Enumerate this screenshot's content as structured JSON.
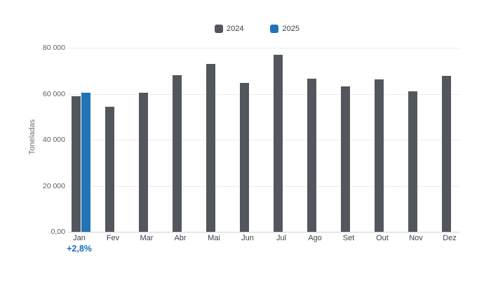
{
  "legend": {
    "items": [
      {
        "label": "2024",
        "color": "#53575d"
      },
      {
        "label": "2025",
        "color": "#2273b8"
      }
    ]
  },
  "chart_data": {
    "type": "bar",
    "title": "",
    "xlabel": "",
    "ylabel": "Toneladas",
    "categories": [
      "Jan",
      "Fev",
      "Mar",
      "Abr",
      "Mai",
      "Jun",
      "Jul",
      "Ago",
      "Set",
      "Out",
      "Nov",
      "Dez"
    ],
    "series": [
      {
        "name": "2024",
        "color": "#53575d",
        "values": [
          58800,
          54400,
          60600,
          68200,
          73000,
          64600,
          76900,
          66700,
          63300,
          66200,
          61100,
          67800
        ]
      },
      {
        "name": "2025",
        "color": "#2273b8",
        "values": [
          60400,
          null,
          null,
          null,
          null,
          null,
          null,
          null,
          null,
          null,
          null,
          null
        ]
      }
    ],
    "ylim": [
      0,
      80000
    ],
    "yticks": [
      {
        "value": 0,
        "label": "0,00"
      },
      {
        "value": 20000,
        "label": "20 000"
      },
      {
        "value": 40000,
        "label": "40 000"
      },
      {
        "value": 60000,
        "label": "60 000"
      },
      {
        "value": 80000,
        "label": "80 000"
      }
    ],
    "grid": true,
    "legend_position": "top-center",
    "annotation": {
      "text": "+2,8%",
      "category": "Jan",
      "color": "#1a6fb5"
    }
  }
}
